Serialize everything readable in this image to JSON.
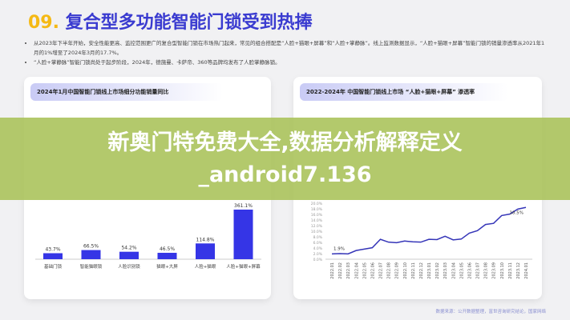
{
  "header": {
    "number": "09.",
    "title": "复合型多功能智能门锁受到热捧"
  },
  "bullets": [
    "从2023年下半年开始，安全性能更高、监控范围更广的复合型智能门锁在市场热门起来，常见的组合搭配是“人脸+猫眼+屏幕”和“人脸+掌静脉”。线上监测数据显示，“人脸+猫眼+屏幕”智能门锁的销量渗透率从2021年1月的1%增至了2024年3月的17.7%。",
    "“人脸+掌静脉”智能门锁尚处于起步阶段，2024年，德施曼、卡萨帝、360等品牌均发布了人脸掌静脉锁。"
  ],
  "chart_data": [
    {
      "type": "bar",
      "title": "2024年1月中国智能门锁线上市场细分功能销量同比",
      "categories": [
        "基础门锁",
        "智能猫眼锁",
        "人脸识别锁",
        "猫眼+大屏",
        "人脸+猫眼",
        "人脸+猫眼+屏幕"
      ],
      "values": [
        43.7,
        66.5,
        54.2,
        46.5,
        114.8,
        361.1
      ],
      "labels": [
        "43.7%",
        "66.5%",
        "54.2%",
        "46.5%",
        "114.8%",
        "361.1%"
      ],
      "color": "#3535e6"
    },
    {
      "type": "line",
      "title": "2022-2024年 中国智能门锁线上市场 “人脸+猫眼+屏幕” 渗透率",
      "x": [
        "2022.01",
        "2022.02",
        "2022.03",
        "2022.04",
        "2022.05",
        "2022.06",
        "2022.07",
        "2022.08",
        "2022.09",
        "2022.10",
        "2022.11",
        "2022.12",
        "2023.01",
        "2023.02",
        "2023.03",
        "2023.04",
        "2023.05",
        "2023.06",
        "2023.07",
        "2023.08",
        "2023.09",
        "2023.10",
        "2023.11",
        "2023.12",
        "2024.01"
      ],
      "values": [
        1.9,
        2.0,
        1.9,
        3.1,
        3.6,
        4.1,
        7.1,
        6.1,
        5.9,
        6.5,
        6.2,
        6.1,
        7.1,
        7.0,
        8.2,
        6.9,
        7.2,
        9.3,
        10.2,
        12.4,
        12.8,
        15.6,
        16.1,
        17.9,
        18.5
      ],
      "yticks": [
        "0.0%",
        "2.0%",
        "4.0%",
        "6.0%",
        "8.0%",
        "10.0%",
        "12.0%",
        "14.0%",
        "16.0%",
        "18.0%",
        "20.0%"
      ],
      "ylim": [
        0,
        20
      ],
      "start_label": "1.9%",
      "end_label": "18.5%",
      "color": "#3535b8"
    }
  ],
  "source": "数据来源：公开数据整理，富世咨询研究结论，国家网络",
  "overlay": "新奥门特免费大全,数据分析解释定义_android7.136"
}
